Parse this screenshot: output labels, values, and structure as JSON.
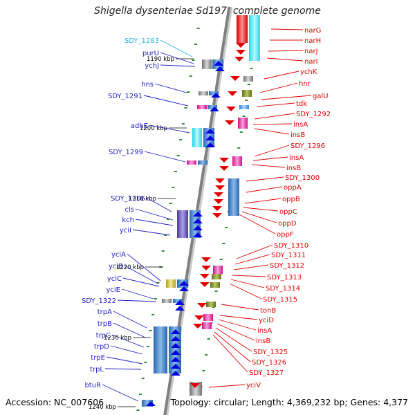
{
  "title": "Shigella dysenteriae Sd197, complete genome",
  "accession": "Accession: NC_007606",
  "topology": "Topology: circular; Length: 4,369,232 bp; Genes: 4,377",
  "colors": {
    "backbone": "#808080",
    "left_label": "#1f1fbf",
    "right_label": "#e00000",
    "highlight_label": "#2ab0e0",
    "tick": "#2e8b2e"
  },
  "kbp_marks": [
    "1190 kbp",
    "1200 kbp",
    "1210 kbp",
    "1220 kbp",
    "1230 kbp",
    "1240 kbp"
  ],
  "left_genes": [
    "SDY_1283",
    "purU",
    "ychJ",
    "hns",
    "SDY_1291",
    "adhE",
    "SDY_1299",
    "SDY_1306",
    "cls",
    "kch",
    "yciI",
    "yciA",
    "yciB",
    "yciC",
    "yciE",
    "SDY_1322",
    "trpA",
    "trpB",
    "trpC",
    "trpD",
    "trpE",
    "trpL",
    "btuR"
  ],
  "right_genes": [
    "narG",
    "narH",
    "narJ",
    "narI",
    "ychK",
    "hnr",
    "galU",
    "tdk",
    "SDY_1292",
    "insA",
    "insB",
    "SDY_1296",
    "insA",
    "insB",
    "SDY_1300",
    "oppA",
    "oppB",
    "oppC",
    "oppD",
    "oppF",
    "SDY_1310",
    "SDY_1311",
    "SDY_1312",
    "SDY_1313",
    "SDY_1314",
    "SDY_1315",
    "tonB",
    "yciD",
    "insA",
    "insB",
    "SDY_1325",
    "SDY_1326",
    "SDY_1327",
    "yciV"
  ]
}
